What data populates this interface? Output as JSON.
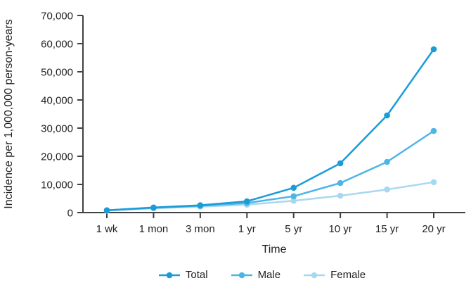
{
  "chart_data": {
    "type": "line",
    "title": "",
    "xlabel": "Time",
    "ylabel": "Incidence per 1,000,000 person-years",
    "categories": [
      "1 wk",
      "1 mon",
      "3 mon",
      "1 yr",
      "5 yr",
      "10 yr",
      "15 yr",
      "20 yr"
    ],
    "series": [
      {
        "name": "Total",
        "color": "#1a9cd8",
        "values": [
          800,
          1800,
          2600,
          4000,
          8800,
          17500,
          34500,
          58000
        ]
      },
      {
        "name": "Male",
        "color": "#4db5e6",
        "values": [
          800,
          1700,
          2400,
          3400,
          5800,
          10500,
          18000,
          29000
        ]
      },
      {
        "name": "Female",
        "color": "#a8d8f0",
        "values": [
          700,
          1500,
          2100,
          2800,
          4200,
          6000,
          8200,
          10800
        ]
      }
    ],
    "ylim": [
      0,
      70000
    ],
    "y_ticks": [
      0,
      10000,
      20000,
      30000,
      40000,
      50000,
      60000,
      70000
    ],
    "y_tick_labels": [
      "0",
      "10,000",
      "20,000",
      "30,000",
      "40,000",
      "50,000",
      "60,000",
      "70,000"
    ],
    "legend_position": "bottom",
    "grid": false
  },
  "colors": {
    "axis": "#414042",
    "text": "#231f20"
  }
}
